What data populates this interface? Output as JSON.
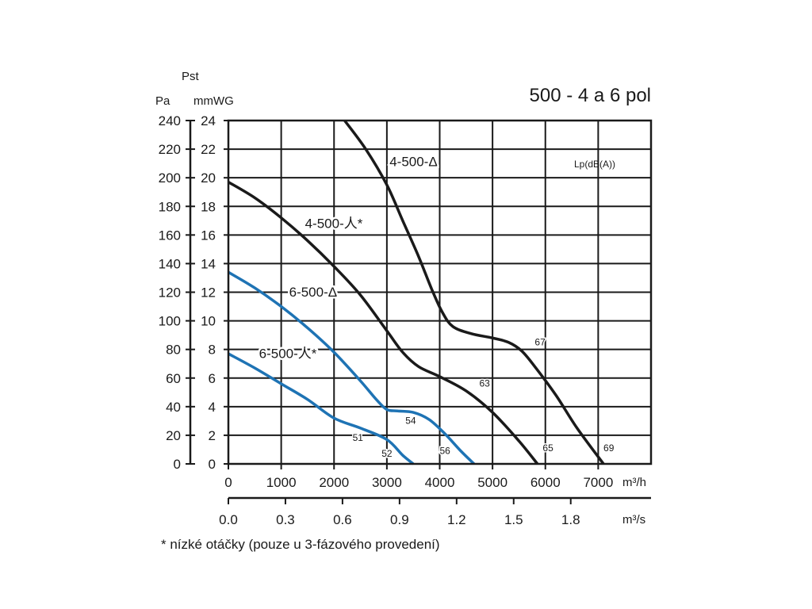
{
  "chart_data": {
    "type": "line",
    "title": "500 - 4 a 6 pol",
    "ylabel": "Pst",
    "y_units": [
      "Pa",
      "mmWG"
    ],
    "x_units": [
      "m³/h",
      "m³/s"
    ],
    "legend_note": "Lp(dB(A))",
    "footnote": "* nízké otáčky (pouze u 3-fázového provedení)",
    "xlim": [
      0,
      8000
    ],
    "ylim_mmwg": [
      0,
      24
    ],
    "ylim_pa": [
      0,
      240
    ],
    "grid": true,
    "x_ticks_m3h": [
      "0",
      "1000",
      "2000",
      "3000",
      "4000",
      "5000",
      "6000",
      "7000"
    ],
    "x_ticks_m3s": [
      "0.0",
      "0.3",
      "0.6",
      "0.9",
      "1.2",
      "1.5",
      "1.8"
    ],
    "y_ticks_mmwg": [
      "0",
      "2",
      "4",
      "6",
      "8",
      "10",
      "12",
      "14",
      "16",
      "18",
      "20",
      "22",
      "24"
    ],
    "y_ticks_pa": [
      "0",
      "20",
      "40",
      "60",
      "80",
      "100",
      "120",
      "140",
      "160",
      "180",
      "200",
      "220",
      "240"
    ],
    "series": [
      {
        "name": "4-500-Δ",
        "color": "#1a1a1a",
        "x": [
          2200,
          2600,
          3000,
          3300,
          3600,
          3850,
          4050,
          4250,
          4600,
          5000,
          5300,
          5550,
          5800,
          6200,
          6600,
          7100
        ],
        "y": [
          24,
          22,
          19.5,
          17,
          14.5,
          12.2,
          10.6,
          9.6,
          9.1,
          8.8,
          8.5,
          7.9,
          6.8,
          4.8,
          2.5,
          0
        ]
      },
      {
        "name": "4-500-人*",
        "color": "#1a1a1a",
        "x": [
          0,
          500,
          1000,
          1500,
          2000,
          2500,
          3000,
          3300,
          3600,
          4000,
          4500,
          5000,
          5500,
          5850
        ],
        "y": [
          19.7,
          18.6,
          17.2,
          15.6,
          13.8,
          11.8,
          9.3,
          7.8,
          6.8,
          6.1,
          5.1,
          3.6,
          1.6,
          0
        ]
      },
      {
        "name": "6-500-Δ",
        "color": "#1e73b4",
        "x": [
          0,
          500,
          1000,
          1500,
          2000,
          2500,
          2800,
          3000,
          3200,
          3500,
          3800,
          4100,
          4400,
          4650
        ],
        "y": [
          13.4,
          12.3,
          11.0,
          9.5,
          7.8,
          5.8,
          4.5,
          3.8,
          3.7,
          3.6,
          3.1,
          2.1,
          0.9,
          0
        ]
      },
      {
        "name": "6-500-人*",
        "color": "#1e73b4",
        "x": [
          0,
          500,
          1000,
          1500,
          2000,
          2500,
          3000,
          3300,
          3500
        ],
        "y": [
          7.7,
          6.7,
          5.6,
          4.5,
          3.2,
          2.5,
          1.7,
          0.6,
          0
        ]
      }
    ],
    "curve_labels": [
      {
        "text": "4-500-Δ",
        "x": 3050,
        "y": 20.8
      },
      {
        "text": "4-500-人*",
        "x": 1450,
        "y": 16.5
      },
      {
        "text": "6-500-Δ",
        "x": 1150,
        "y": 11.7
      },
      {
        "text": "6-500-人*",
        "x": 580,
        "y": 7.4
      }
    ],
    "sound_levels": [
      {
        "text": "67",
        "x": 5800,
        "y": 8.3
      },
      {
        "text": "63",
        "x": 4750,
        "y": 5.4
      },
      {
        "text": "65",
        "x": 5950,
        "y": 0.9
      },
      {
        "text": "69",
        "x": 7100,
        "y": 0.9
      },
      {
        "text": "54",
        "x": 3350,
        "y": 2.8
      },
      {
        "text": "51",
        "x": 2350,
        "y": 1.6
      },
      {
        "text": "52",
        "x": 2900,
        "y": 0.5
      },
      {
        "text": "56",
        "x": 4000,
        "y": 0.7
      }
    ]
  }
}
